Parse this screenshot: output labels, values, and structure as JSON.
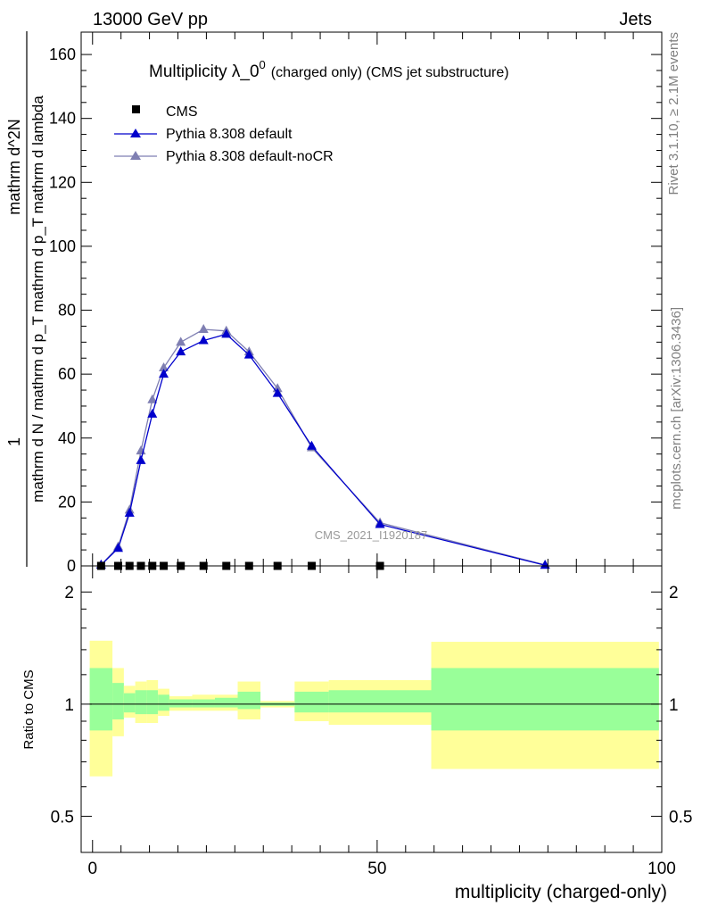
{
  "header": {
    "left": "13000 GeV pp",
    "right": "Jets"
  },
  "side": {
    "rivet": "Rivet 3.1.10, ≥ 2.1M events",
    "mcplots": "mcplots.cern.ch [arXiv:1306.3436]"
  },
  "colors": {
    "data": "#000000",
    "pythia_default": "#0000cc",
    "pythia_nocr": "#7f7fb2",
    "band_inner": "#99ff99",
    "band_outer": "#ffff99"
  },
  "chart_data": [
    {
      "type": "scatter",
      "title_main": "Multiplicity λ_0",
      "title_sup": "0",
      "title_small": "(charged only) (CMS jet substructure)",
      "watermark": "CMS_2021_I1920187",
      "ylabel_num": "1",
      "ylabel_den": "mathrm d N / mathrm d p_T mathrm d p_T mathrm d lambda",
      "ylabel_upper": "mathrm d^2N",
      "xlim": [
        -2,
        100
      ],
      "ylim": [
        0,
        167
      ],
      "yticks": [
        0,
        20,
        40,
        60,
        80,
        100,
        120,
        140,
        160
      ],
      "legend_position": "top-left",
      "legend": [
        "CMS",
        "Pythia 8.308 default",
        "Pythia 8.308 default-noCR"
      ],
      "series": [
        {
          "name": "CMS",
          "x": [
            1.5,
            4.5,
            6.5,
            8.5,
            10.5,
            12.5,
            15.5,
            19.5,
            23.5,
            27.5,
            32.5,
            38.5,
            50.5
          ],
          "y": [
            0,
            0,
            0,
            0,
            0,
            0,
            0,
            0,
            0,
            0,
            0,
            0,
            0
          ]
        },
        {
          "name": "Pythia 8.308 default",
          "x": [
            1.5,
            4.5,
            6.5,
            8.5,
            10.5,
            12.5,
            15.5,
            19.5,
            23.5,
            27.5,
            32.5,
            38.5,
            50.5,
            79.5
          ],
          "y": [
            0.3,
            5.5,
            16.5,
            33,
            47.5,
            60,
            67,
            70.5,
            72.5,
            66,
            54,
            37.5,
            13,
            0.2
          ]
        },
        {
          "name": "Pythia 8.308 default-noCR",
          "x": [
            1.5,
            4.5,
            6.5,
            8.5,
            10.5,
            12.5,
            15.5,
            19.5,
            23.5,
            27.5,
            32.5,
            38.5,
            50.5,
            79.5
          ],
          "y": [
            0.3,
            6,
            17.5,
            36,
            52,
            62,
            70,
            74,
            73.5,
            67,
            55.5,
            37,
            13.5,
            0.3
          ]
        }
      ]
    },
    {
      "type": "area",
      "ylabel": "Ratio to CMS",
      "xlabel": "multiplicity (charged-only)",
      "xlim": [
        -2,
        100
      ],
      "ylim": [
        0.4,
        2.35
      ],
      "yscale": "log",
      "yticks": [
        0.5,
        1,
        2
      ],
      "xticks": [
        0,
        50,
        100
      ],
      "bins": [
        {
          "lo": -0.5,
          "hi": 3.5,
          "inner": [
            0.85,
            1.25
          ],
          "outer": [
            0.64,
            1.48
          ]
        },
        {
          "lo": 3.5,
          "hi": 5.5,
          "inner": [
            0.91,
            1.14
          ],
          "outer": [
            0.82,
            1.25
          ]
        },
        {
          "lo": 5.5,
          "hi": 7.5,
          "inner": [
            0.95,
            1.07
          ],
          "outer": [
            0.92,
            1.12
          ]
        },
        {
          "lo": 7.5,
          "hi": 9.5,
          "inner": [
            0.94,
            1.09
          ],
          "outer": [
            0.89,
            1.15
          ]
        },
        {
          "lo": 9.5,
          "hi": 11.5,
          "inner": [
            0.94,
            1.09
          ],
          "outer": [
            0.89,
            1.16
          ]
        },
        {
          "lo": 11.5,
          "hi": 13.5,
          "inner": [
            0.96,
            1.06
          ],
          "outer": [
            0.93,
            1.1
          ]
        },
        {
          "lo": 13.5,
          "hi": 17.5,
          "inner": [
            0.98,
            1.03
          ],
          "outer": [
            0.96,
            1.05
          ]
        },
        {
          "lo": 17.5,
          "hi": 21.5,
          "inner": [
            0.98,
            1.03
          ],
          "outer": [
            0.96,
            1.06
          ]
        },
        {
          "lo": 21.5,
          "hi": 25.5,
          "inner": [
            0.98,
            1.04
          ],
          "outer": [
            0.96,
            1.06
          ]
        },
        {
          "lo": 25.5,
          "hi": 29.5,
          "inner": [
            0.97,
            1.08
          ],
          "outer": [
            0.91,
            1.15
          ]
        },
        {
          "lo": 29.5,
          "hi": 35.5,
          "inner": [
            0.99,
            1.01
          ],
          "outer": [
            0.98,
            1.02
          ]
        },
        {
          "lo": 35.5,
          "hi": 41.5,
          "inner": [
            0.95,
            1.08
          ],
          "outer": [
            0.9,
            1.15
          ]
        },
        {
          "lo": 41.5,
          "hi": 59.5,
          "inner": [
            0.95,
            1.09
          ],
          "outer": [
            0.88,
            1.16
          ]
        },
        {
          "lo": 59.5,
          "hi": 99.5,
          "inner": [
            0.85,
            1.25
          ],
          "outer": [
            0.67,
            1.47
          ]
        }
      ],
      "reference": 1
    }
  ]
}
